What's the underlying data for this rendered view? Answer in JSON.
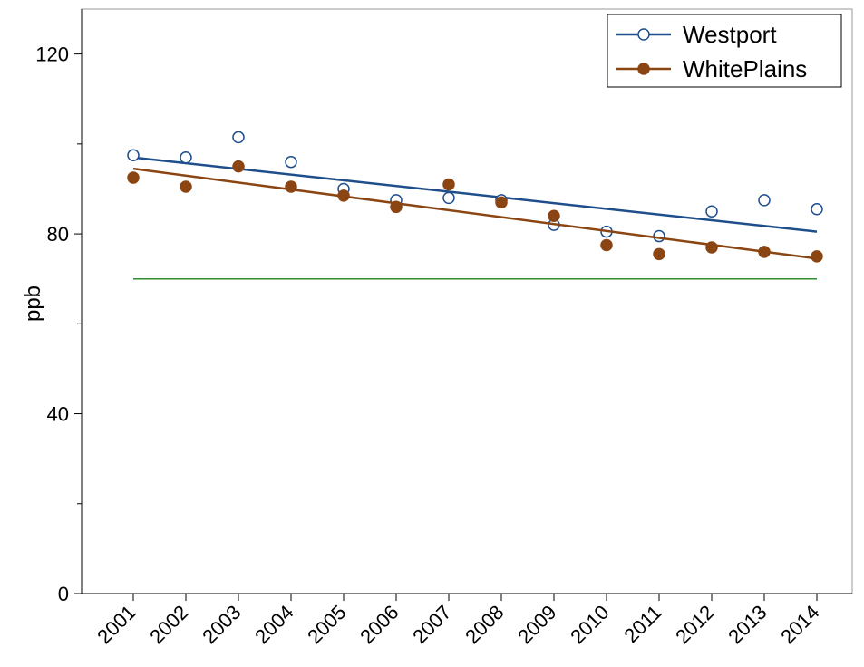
{
  "chart_data": {
    "type": "scatter",
    "title": "",
    "xlabel": "",
    "ylabel": "ppb",
    "x": [
      "2001",
      "2002",
      "2003",
      "2004",
      "2005",
      "2006",
      "2007",
      "2008",
      "2009",
      "2010",
      "2011",
      "2012",
      "2013",
      "2014"
    ],
    "ylim": [
      0,
      130
    ],
    "yticks": [
      0,
      40,
      80,
      120
    ],
    "grid": false,
    "legend_position": "top-right",
    "series": [
      {
        "name": "Westport",
        "marker": "open-circle",
        "color": "#1f4e8c",
        "values": [
          97.5,
          97,
          101.5,
          96,
          90,
          87.5,
          88,
          87.5,
          82,
          80.5,
          79.5,
          85,
          87.5,
          85.5
        ],
        "trend": [
          97,
          80.5
        ]
      },
      {
        "name": "WhitePlains",
        "marker": "filled-circle",
        "color": "#8b4513",
        "values": [
          92.5,
          90.5,
          95,
          90.5,
          88.5,
          86,
          91,
          87,
          84,
          77.5,
          75.5,
          77,
          76,
          75
        ],
        "trend": [
          94.5,
          74.5
        ]
      }
    ],
    "reference_line": {
      "y": 70,
      "color": "#2e8b2e"
    }
  }
}
